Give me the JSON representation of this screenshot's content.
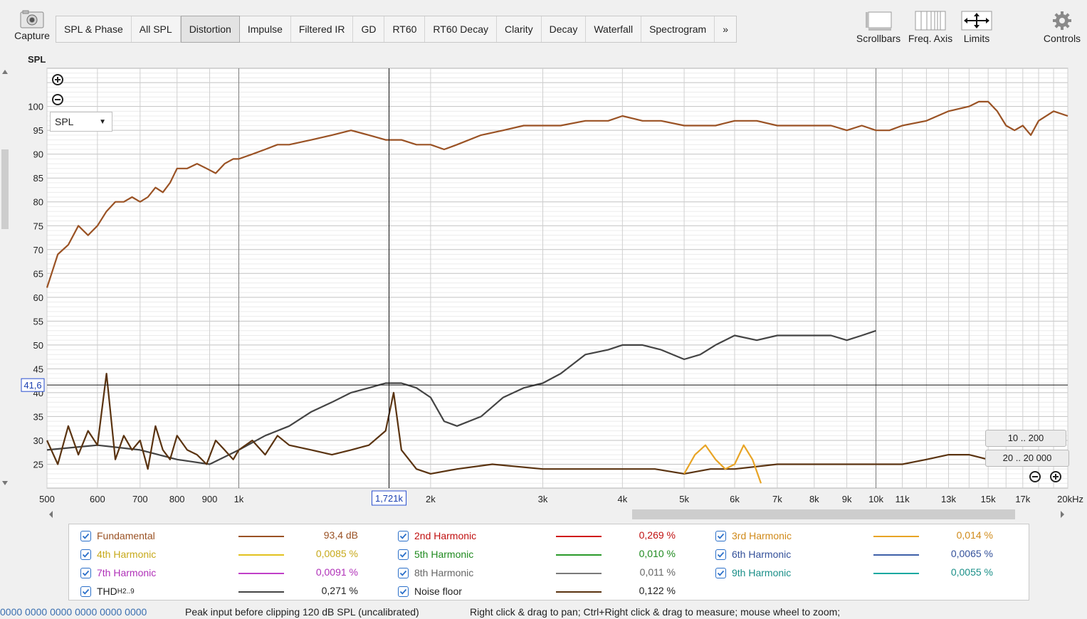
{
  "toolbar": {
    "capture_label": "Capture",
    "tabs": [
      "SPL & Phase",
      "All SPL",
      "Distortion",
      "Impulse",
      "Filtered IR",
      "GD",
      "RT60",
      "RT60 Decay",
      "Clarity",
      "Decay",
      "Waterfall",
      "Spectrogram",
      "»"
    ],
    "active_tab": "Distortion",
    "scrollbars_label": "Scrollbars",
    "freq_axis_label": "Freq. Axis",
    "limits_label": "Limits",
    "controls_label": "Controls"
  },
  "graph": {
    "y_axis_title": "SPL",
    "y_ticks": [
      "100",
      "95",
      "90",
      "85",
      "80",
      "75",
      "70",
      "65",
      "60",
      "55",
      "50",
      "45",
      "40",
      "35",
      "30",
      "25"
    ],
    "x_ticks": [
      "500",
      "600",
      "700",
      "800",
      "900",
      "1k",
      "2k",
      "3k",
      "4k",
      "5k",
      "6k",
      "7k",
      "8k",
      "9k",
      "10k",
      "11k",
      "13k",
      "15k",
      "17k",
      "20kHz"
    ],
    "x_tick_freqs": [
      500,
      600,
      700,
      800,
      900,
      1000,
      2000,
      3000,
      4000,
      5000,
      6000,
      7000,
      8000,
      9000,
      10000,
      11000,
      13000,
      15000,
      17000,
      20000
    ],
    "dropdown_value": "SPL",
    "cursor_y_readout": "41,6",
    "cursor_x_readout": "1,721k",
    "cursor_freq": 1721,
    "cursor_db": 41.6,
    "range_buttons": [
      "10 .. 200",
      "20 .. 20 000"
    ]
  },
  "chart_data": {
    "type": "line",
    "ylabel": "SPL",
    "xlabel": "",
    "x_scale": "log",
    "xlim": [
      500,
      20000
    ],
    "ylim": [
      20,
      108
    ],
    "series": [
      {
        "name": "Fundamental",
        "color": "#9a5224",
        "x": [
          500,
          520,
          540,
          560,
          580,
          600,
          620,
          640,
          660,
          680,
          700,
          720,
          740,
          760,
          780,
          800,
          830,
          860,
          890,
          920,
          950,
          980,
          1000,
          1050,
          1100,
          1150,
          1200,
          1300,
          1400,
          1500,
          1600,
          1700,
          1800,
          1900,
          2000,
          2100,
          2200,
          2400,
          2600,
          2800,
          3000,
          3200,
          3500,
          3800,
          4000,
          4300,
          4600,
          5000,
          5300,
          5600,
          6000,
          6500,
          7000,
          7500,
          8000,
          8500,
          9000,
          9500,
          10000,
          10500,
          11000,
          12000,
          13000,
          14000,
          14500,
          15000,
          15500,
          16000,
          16500,
          17000,
          17500,
          18000,
          19000,
          20000
        ],
        "y": [
          62,
          69,
          71,
          75,
          73,
          75,
          78,
          80,
          80,
          81,
          80,
          81,
          83,
          82,
          84,
          87,
          87,
          88,
          87,
          86,
          88,
          89,
          89,
          90,
          91,
          92,
          92,
          93,
          94,
          95,
          94,
          93,
          93,
          92,
          92,
          91,
          92,
          94,
          95,
          96,
          96,
          96,
          97,
          97,
          98,
          97,
          97,
          96,
          96,
          96,
          97,
          97,
          96,
          96,
          96,
          96,
          95,
          96,
          95,
          95,
          96,
          97,
          99,
          100,
          101,
          101,
          99,
          96,
          95,
          96,
          94,
          97,
          99,
          98
        ]
      },
      {
        "name": "THD",
        "color": "#444444",
        "x": [
          500,
          600,
          700,
          800,
          900,
          1000,
          1100,
          1200,
          1300,
          1400,
          1500,
          1600,
          1700,
          1800,
          1900,
          2000,
          2100,
          2200,
          2400,
          2600,
          2800,
          3000,
          3200,
          3500,
          3800,
          4000,
          4300,
          4600,
          5000,
          5300,
          5600,
          6000,
          6500,
          7000,
          7500,
          8000,
          8500,
          9000,
          9500,
          10000
        ],
        "y": [
          28,
          29,
          28,
          26,
          25,
          28,
          31,
          33,
          36,
          38,
          40,
          41,
          42,
          42,
          41,
          39,
          34,
          33,
          35,
          39,
          41,
          42,
          44,
          48,
          49,
          50,
          50,
          49,
          47,
          48,
          50,
          52,
          51,
          52,
          52,
          52,
          52,
          51,
          52,
          53
        ]
      },
      {
        "name": "Noise floor",
        "color": "#5a3310",
        "x": [
          500,
          520,
          540,
          560,
          580,
          600,
          620,
          640,
          660,
          680,
          700,
          720,
          740,
          760,
          780,
          800,
          830,
          860,
          890,
          920,
          950,
          980,
          1000,
          1050,
          1100,
          1150,
          1200,
          1300,
          1400,
          1500,
          1600,
          1700,
          1750,
          1800,
          1900,
          2000,
          2200,
          2500,
          3000,
          3500,
          4000,
          4500,
          5000,
          5500,
          6000,
          7000,
          8000,
          9000,
          10000,
          11000,
          12000,
          13000,
          14000,
          15000,
          16000,
          17000,
          18000,
          19000,
          20000
        ],
        "y": [
          30,
          25,
          33,
          27,
          32,
          29,
          44,
          26,
          31,
          28,
          30,
          24,
          33,
          28,
          26,
          31,
          28,
          27,
          25,
          30,
          28,
          26,
          28,
          30,
          27,
          31,
          29,
          28,
          27,
          28,
          29,
          32,
          40,
          28,
          24,
          23,
          24,
          25,
          24,
          24,
          24,
          24,
          23,
          24,
          24,
          25,
          25,
          25,
          25,
          25,
          26,
          27,
          27,
          26,
          26,
          25,
          26,
          25,
          26
        ]
      },
      {
        "name": "3rd Harmonic",
        "color": "#e8a425",
        "x": [
          5000,
          5200,
          5400,
          5600,
          5800,
          6000,
          6200,
          6400,
          6600
        ],
        "y": [
          23,
          27,
          29,
          26,
          24,
          25,
          29,
          26,
          21
        ]
      }
    ]
  },
  "legend": [
    {
      "label": "Fundamental",
      "value": "93,4 dB",
      "color": "#9a5224",
      "label_color": "#9a5224",
      "value_color": "#9a5224"
    },
    {
      "label": "2nd Harmonic",
      "value": "0,269 %",
      "color": "#d01818",
      "label_color": "#c01010",
      "value_color": "#c01010"
    },
    {
      "label": "3rd Harmonic",
      "value": "0,014 %",
      "color": "#e8a425",
      "label_color": "#d08a1a",
      "value_color": "#d08a1a"
    },
    {
      "label": "4th Harmonic",
      "value": "0,0085 %",
      "color": "#e2c21e",
      "label_color": "#c7a91a",
      "value_color": "#c7a91a"
    },
    {
      "label": "5th Harmonic",
      "value": "0,010 %",
      "color": "#2a9a2a",
      "label_color": "#1f8a1f",
      "value_color": "#1f8a1f"
    },
    {
      "label": "6th Harmonic",
      "value": "0,0065 %",
      "color": "#3e60a8",
      "label_color": "#34519a",
      "value_color": "#34519a"
    },
    {
      "label": "7th Harmonic",
      "value": "0,0091 %",
      "color": "#c040c8",
      "label_color": "#b030b8",
      "value_color": "#b030b8"
    },
    {
      "label": "8th Harmonic",
      "value": "0,011 %",
      "color": "#7a7a7a",
      "label_color": "#666666",
      "value_color": "#666666"
    },
    {
      "label": "9th Harmonic",
      "value": "0,0055 %",
      "color": "#1aa8a0",
      "label_color": "#1a8f88",
      "value_color": "#1a8f88"
    },
    {
      "label": "THD",
      "label_sub": "H2..9",
      "value": "0,271 %",
      "color": "#444444",
      "label_color": "#222222",
      "value_color": "#222222"
    },
    {
      "label": "Noise floor",
      "value": "0,122 %",
      "color": "#5a3310",
      "label_color": "#222222",
      "value_color": "#222222"
    }
  ],
  "status": {
    "meters": "0000 0000  0000 0000  0000 0000",
    "peak": "Peak input before clipping 120 dB SPL (uncalibrated)",
    "hint": "Right click & drag to pan; Ctrl+Right click & drag to measure; mouse wheel to zoom;"
  }
}
